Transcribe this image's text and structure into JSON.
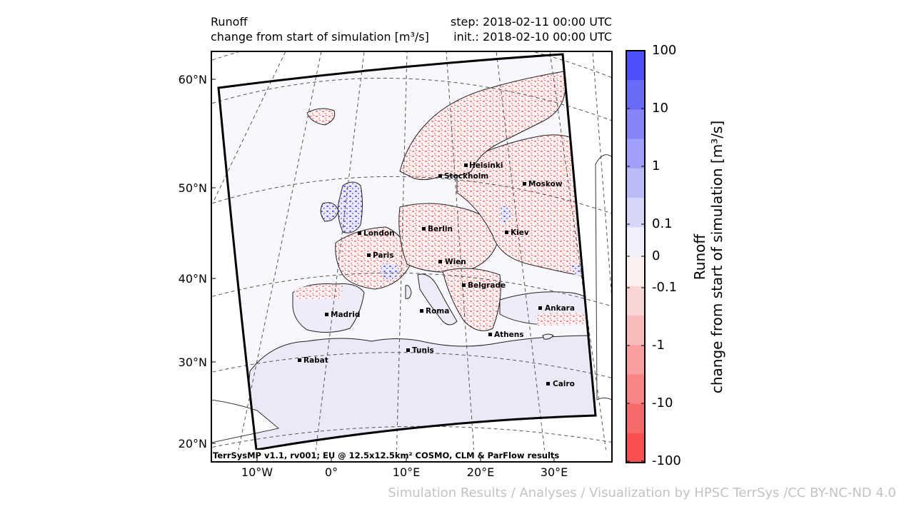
{
  "header": {
    "variable": "Runoff",
    "description": "change from start of simulation [m³/s]",
    "step": "step: 2018-02-11 00:00 UTC",
    "init": "init.: 2018-02-10 00:00 UTC"
  },
  "map": {
    "projection": "rotated lat/lon (COSMO EU domain)",
    "lat_labels": [
      "60°N",
      "50°N",
      "40°N",
      "30°N",
      "20°N"
    ],
    "lon_labels": [
      "10°W",
      "0°",
      "10°E",
      "20°E",
      "30°E"
    ],
    "cities": [
      {
        "name": "Helsinki"
      },
      {
        "name": "Stockholm"
      },
      {
        "name": "Moskow"
      },
      {
        "name": "London"
      },
      {
        "name": "Berlin"
      },
      {
        "name": "Kiev"
      },
      {
        "name": "Paris"
      },
      {
        "name": "Wien"
      },
      {
        "name": "Belgrade"
      },
      {
        "name": "Madrid"
      },
      {
        "name": "Roma"
      },
      {
        "name": "Ankara"
      },
      {
        "name": "Athens"
      },
      {
        "name": "Tunis"
      },
      {
        "name": "Rabat"
      },
      {
        "name": "Cairo"
      }
    ],
    "footer": "TerrSysMP v1.1, rv001; EU @ 12.5x12.5km² COSMO, CLM & ParFlow results"
  },
  "colorbar": {
    "tick_labels": [
      "100",
      "10",
      "1",
      "0.1",
      "0",
      "-0.1",
      "-1",
      "-10",
      "-100"
    ],
    "colors": [
      "#5050f8",
      "#6a6af8",
      "#8585f8",
      "#a0a0f8",
      "#bbbbf8",
      "#d6d6f8",
      "#f0f0fb",
      "#fbf0f0",
      "#f8d6d6",
      "#f8bbbb",
      "#f8a0a0",
      "#f88585",
      "#f86a6a",
      "#f85050"
    ],
    "label_line1": "Runoff",
    "label_line2": "change from start of simulation [m³/s]"
  },
  "credit": "Simulation Results / Analyses / Visualization by HPSC TerrSys /CC BY-NC-ND 4.0"
}
